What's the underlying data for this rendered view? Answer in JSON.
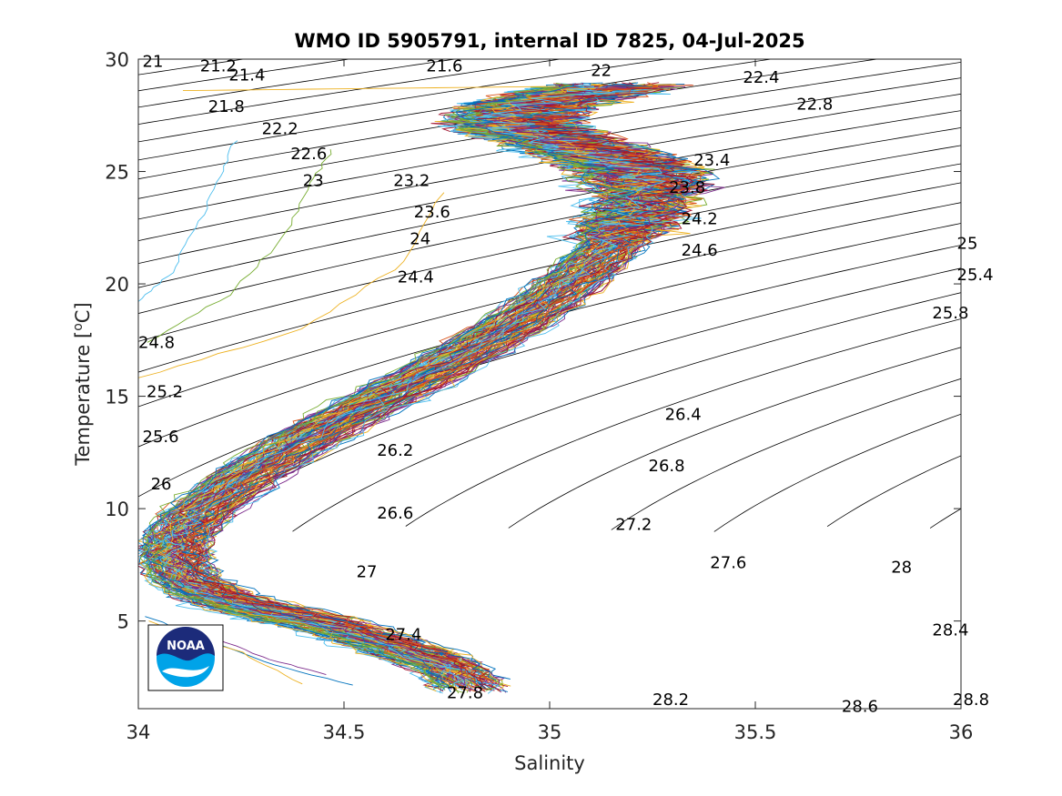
{
  "chart_data": {
    "type": "line",
    "title": "WMO ID 5905791, internal ID 7825, 04-Jul-2025",
    "xlabel": "Salinity",
    "ylabel_text": "Temperature [",
    "ylabel_sup": "o",
    "ylabel_unit": "C]",
    "xlim": [
      34,
      36
    ],
    "ylim": [
      1.1,
      30
    ],
    "x_ticks": [
      34,
      34.5,
      35,
      35.5,
      36
    ],
    "x_tick_labels": [
      "34",
      "34.5",
      "35",
      "35.5",
      "36"
    ],
    "y_ticks": [
      5,
      10,
      15,
      20,
      25,
      30
    ],
    "y_tick_labels": [
      "5",
      "10",
      "15",
      "20",
      "25",
      "30"
    ],
    "grid": false,
    "legend": "none",
    "density_contours": {
      "levels_start": 21.0,
      "levels_step": 0.2,
      "levels_end": 29.0,
      "color": "#000000",
      "labels": [
        {
          "text": "21",
          "s": 34.01,
          "t": 29.9
        },
        {
          "text": "21.2",
          "s": 34.15,
          "t": 29.7
        },
        {
          "text": "21.4",
          "s": 34.22,
          "t": 29.3
        },
        {
          "text": "21.6",
          "s": 34.7,
          "t": 29.7
        },
        {
          "text": "22",
          "s": 35.1,
          "t": 29.5
        },
        {
          "text": "22.4",
          "s": 35.47,
          "t": 29.2
        },
        {
          "text": "22.8",
          "s": 35.6,
          "t": 28.0
        },
        {
          "text": "21.8",
          "s": 34.17,
          "t": 27.9
        },
        {
          "text": "22.2",
          "s": 34.3,
          "t": 26.9
        },
        {
          "text": "22.6",
          "s": 34.37,
          "t": 25.8
        },
        {
          "text": "23",
          "s": 34.4,
          "t": 24.6
        },
        {
          "text": "23.2",
          "s": 34.62,
          "t": 24.6
        },
        {
          "text": "23.4",
          "s": 35.35,
          "t": 25.5
        },
        {
          "text": "23.8",
          "s": 35.29,
          "t": 24.3
        },
        {
          "text": "23.6",
          "s": 34.67,
          "t": 23.2
        },
        {
          "text": "24.2",
          "s": 35.32,
          "t": 22.9
        },
        {
          "text": "24",
          "s": 34.66,
          "t": 22.0
        },
        {
          "text": "24.6",
          "s": 35.32,
          "t": 21.5
        },
        {
          "text": "24.4",
          "s": 34.63,
          "t": 20.3
        },
        {
          "text": "25",
          "s": 35.99,
          "t": 21.8
        },
        {
          "text": "25.4",
          "s": 35.99,
          "t": 20.4
        },
        {
          "text": "25.8",
          "s": 35.93,
          "t": 18.7
        },
        {
          "text": "24.8",
          "s": 34.0,
          "t": 17.4
        },
        {
          "text": "25.2",
          "s": 34.02,
          "t": 15.2
        },
        {
          "text": "25.6",
          "s": 34.01,
          "t": 13.2
        },
        {
          "text": "26",
          "s": 34.03,
          "t": 11.1
        },
        {
          "text": "26.2",
          "s": 34.58,
          "t": 12.6
        },
        {
          "text": "26.4",
          "s": 35.28,
          "t": 14.2
        },
        {
          "text": "26.8",
          "s": 35.24,
          "t": 11.9
        },
        {
          "text": "26.6",
          "s": 34.58,
          "t": 9.8
        },
        {
          "text": "27.2",
          "s": 35.16,
          "t": 9.3
        },
        {
          "text": "27.6",
          "s": 35.39,
          "t": 7.6
        },
        {
          "text": "27",
          "s": 34.53,
          "t": 7.2
        },
        {
          "text": "28",
          "s": 35.83,
          "t": 7.4
        },
        {
          "text": "27.4",
          "s": 34.6,
          "t": 4.4
        },
        {
          "text": "28.4",
          "s": 35.93,
          "t": 4.6
        },
        {
          "text": "27.8",
          "s": 34.75,
          "t": 1.8
        },
        {
          "text": "28.2",
          "s": 35.25,
          "t": 1.5
        },
        {
          "text": "28.6",
          "s": 35.71,
          "t": 1.2
        },
        {
          "text": "28.8",
          "s": 35.98,
          "t": 1.5
        }
      ]
    },
    "profile_template": {
      "s": [
        34.81,
        34.75,
        34.65,
        34.55,
        34.45,
        34.32,
        34.2,
        34.12,
        34.09,
        34.1,
        34.16,
        34.27,
        34.4,
        34.55,
        34.71,
        34.85,
        34.98,
        35.08,
        35.15,
        35.2,
        35.24,
        35.22,
        35.15,
        35.05,
        34.95,
        34.9,
        34.95,
        35.08,
        35.18
      ],
      "t": [
        2.1,
        3.0,
        3.7,
        4.3,
        4.9,
        5.4,
        6.0,
        6.8,
        7.8,
        8.8,
        10.0,
        11.5,
        13.0,
        14.5,
        16.0,
        17.5,
        19.0,
        20.5,
        21.7,
        22.8,
        24.0,
        25.0,
        25.6,
        26.2,
        26.8,
        27.3,
        27.9,
        28.5,
        28.9
      ]
    },
    "profile_count": 120,
    "profile_colors": [
      "#0072bd",
      "#d95319",
      "#edb120",
      "#7e2f8e",
      "#77ac30",
      "#4dbeee",
      "#a2142f"
    ],
    "outlier_profiles": [
      {
        "color": "#4dbeee",
        "s": [
          34.0,
          34.08,
          34.14,
          34.2,
          34.24
        ],
        "t": [
          19.2,
          20.5,
          22.5,
          24.8,
          26.6
        ]
      },
      {
        "color": "#77ac30",
        "s": [
          34.02,
          34.22,
          34.35,
          34.42,
          34.48
        ],
        "t": [
          17.4,
          19.5,
          22.0,
          24.5,
          26.2
        ]
      },
      {
        "color": "#edb120",
        "s": [
          34.0,
          34.4,
          34.65,
          34.75
        ],
        "t": [
          15.8,
          18.0,
          21.0,
          24.5
        ]
      },
      {
        "color": "#edb120",
        "s": [
          34.11,
          34.6,
          35.08
        ],
        "t": [
          28.6,
          28.7,
          28.8
        ]
      },
      {
        "color": "#7e2f8e",
        "s": [
          34.12,
          34.3,
          34.48
        ],
        "t": [
          4.7,
          3.4,
          2.5
        ]
      },
      {
        "color": "#0072bd",
        "s": [
          34.02,
          34.3,
          34.55
        ],
        "t": [
          5.2,
          3.2,
          2.0
        ]
      },
      {
        "color": "#edb120",
        "s": [
          34.02,
          34.25,
          34.42
        ],
        "t": [
          5.0,
          3.6,
          2.0
        ]
      }
    ],
    "logo": "noaa-logo",
    "logo_text": "NOAA"
  }
}
